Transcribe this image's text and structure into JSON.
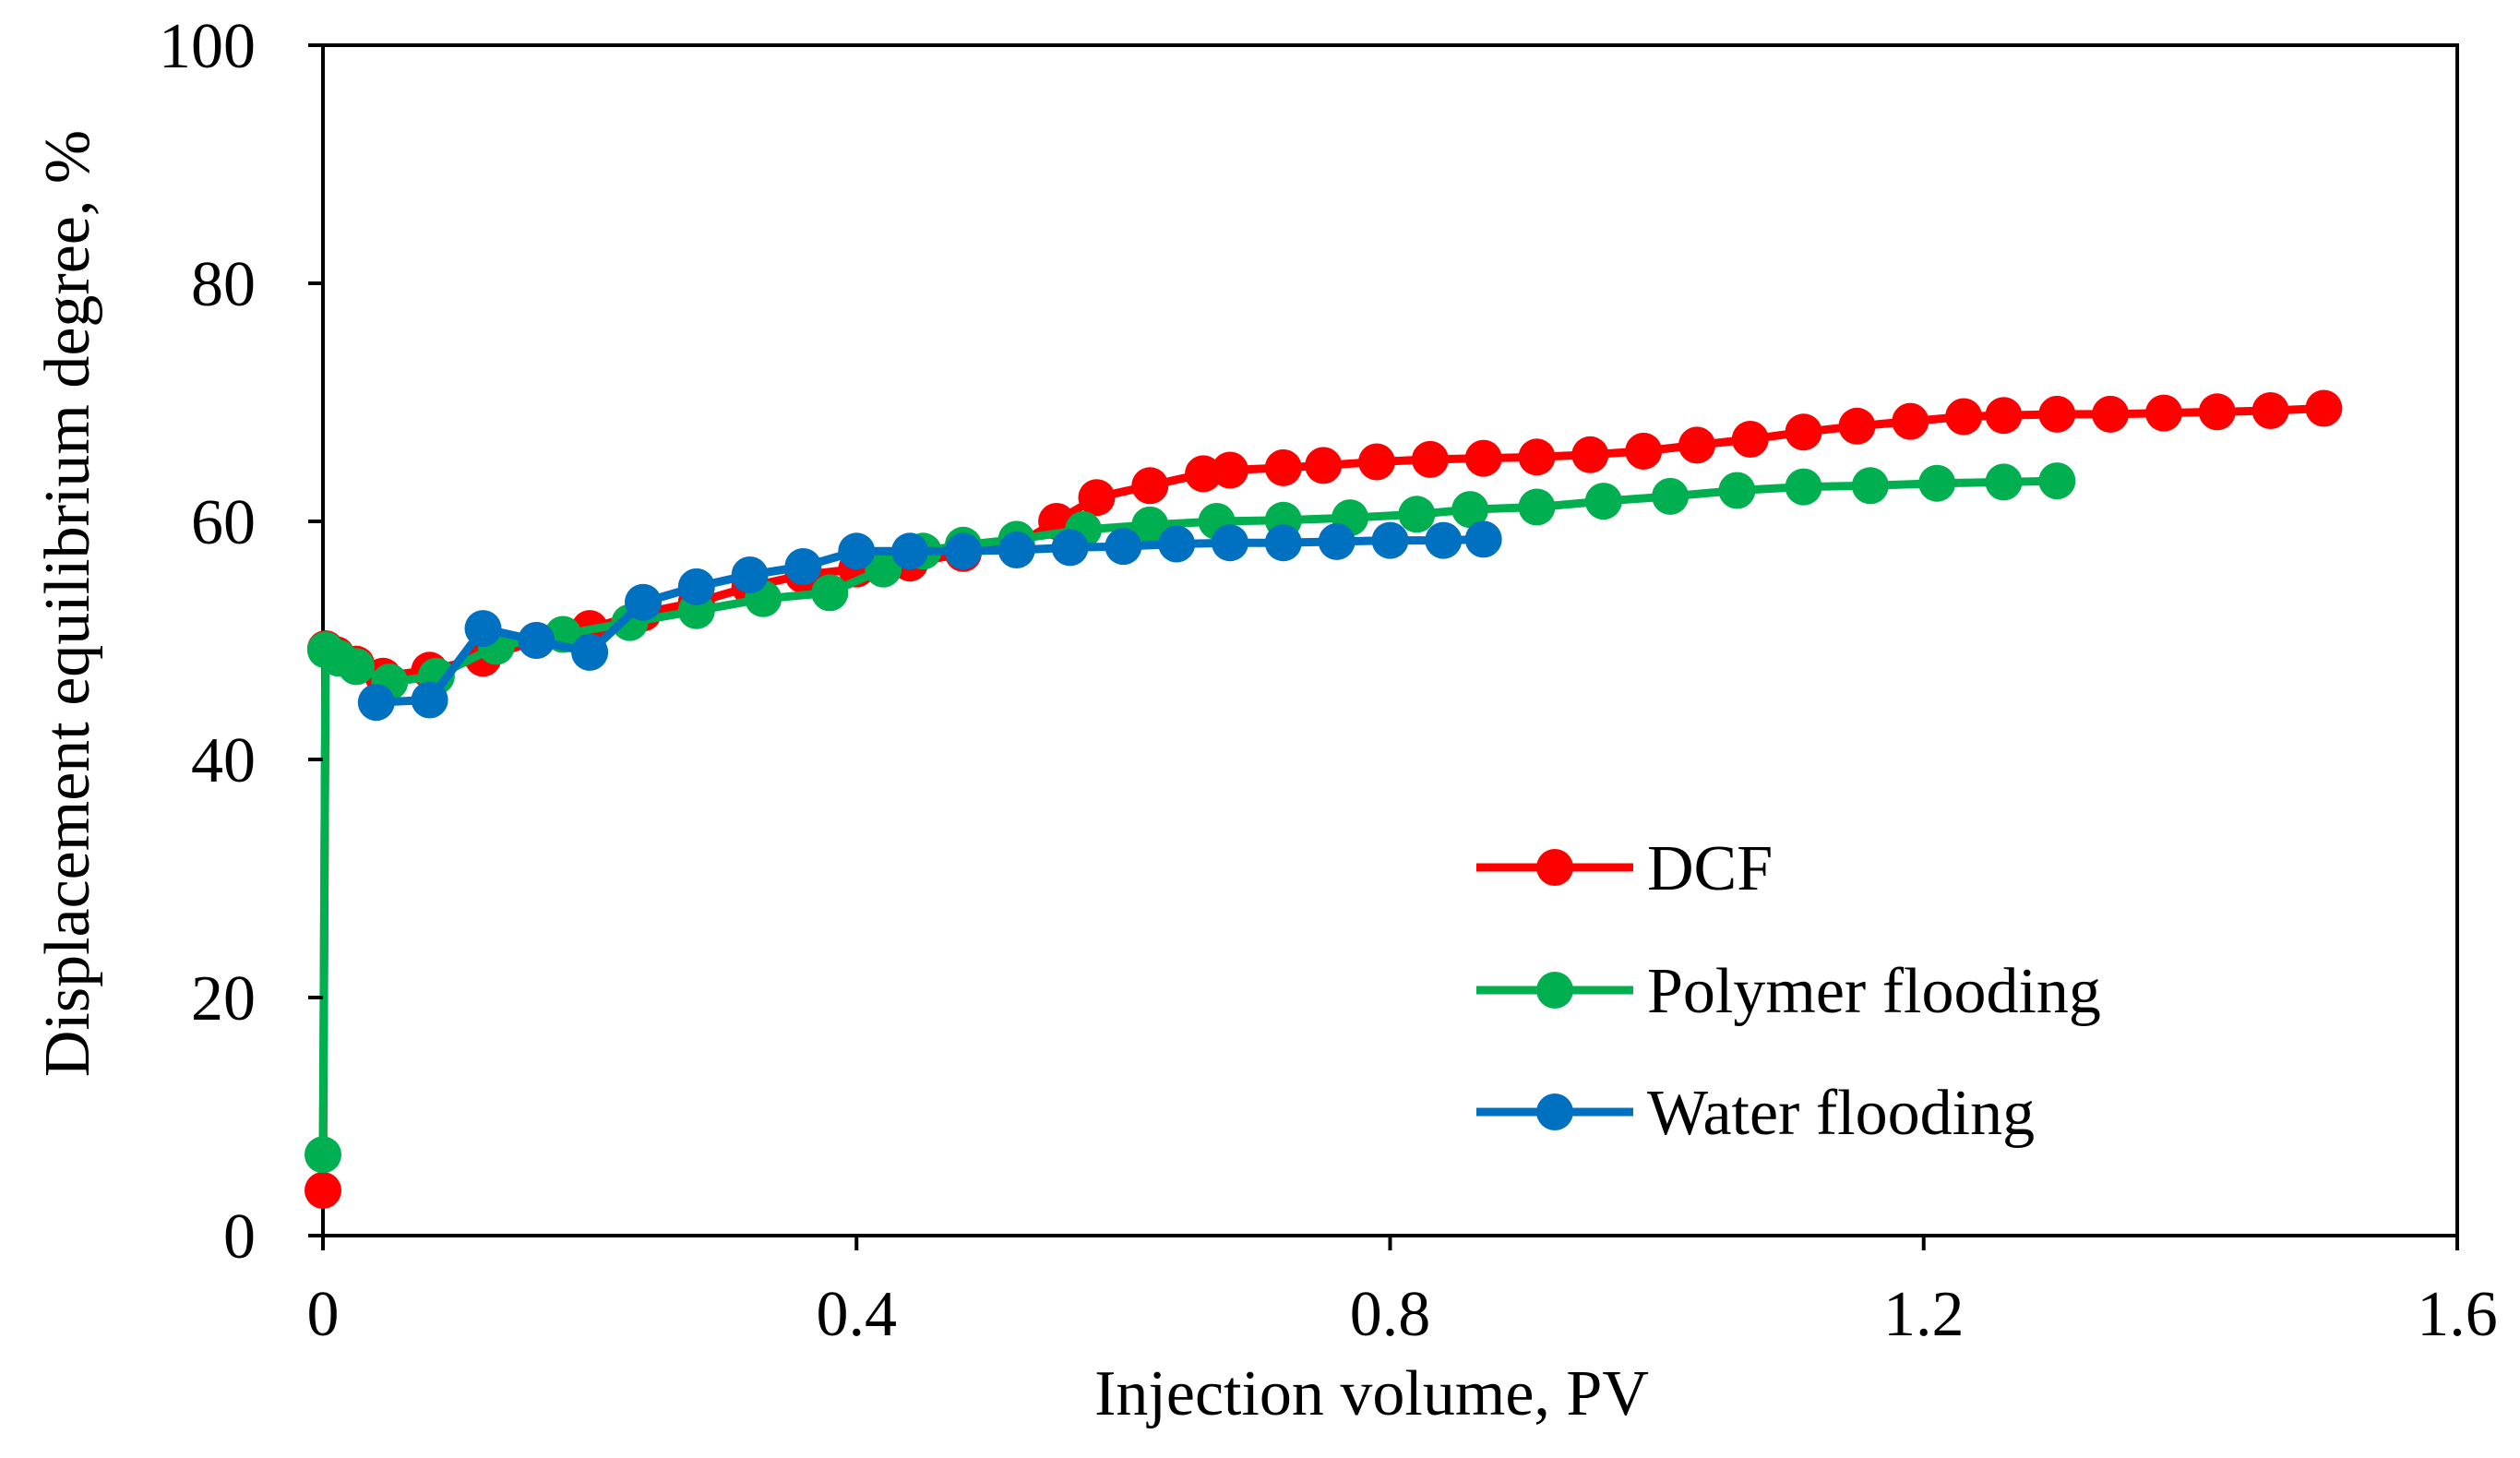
{
  "chart_data": {
    "type": "line",
    "title": "",
    "xlabel": "Injection volume, PV",
    "ylabel": "Displacement equilibrium degree, %",
    "xlim": [
      0,
      1.6
    ],
    "ylim": [
      0,
      100
    ],
    "xticks": [
      0,
      0.4,
      0.8,
      1.2,
      1.6
    ],
    "xtick_labels": [
      "0",
      "0.4",
      "0.8",
      "1.2",
      "1.6"
    ],
    "yticks": [
      0,
      20,
      40,
      60,
      80,
      100
    ],
    "ytick_labels": [
      "0",
      "20",
      "40",
      "60",
      "80",
      "100"
    ],
    "grid": false,
    "legend_position": "bottom-right",
    "series": [
      {
        "name": "DCF",
        "color": "#ff0000",
        "x": [
          0,
          0.002,
          0.01,
          0.025,
          0.045,
          0.08,
          0.12,
          0.16,
          0.2,
          0.24,
          0.28,
          0.32,
          0.36,
          0.4,
          0.44,
          0.48,
          0.52,
          0.55,
          0.58,
          0.62,
          0.66,
          0.68,
          0.72,
          0.75,
          0.79,
          0.83,
          0.87,
          0.91,
          0.95,
          0.99,
          1.03,
          1.07,
          1.11,
          1.15,
          1.19,
          1.23,
          1.26,
          1.3,
          1.34,
          1.38,
          1.42,
          1.46,
          1.5
        ],
        "y": [
          3.8,
          49.3,
          48.8,
          48,
          47,
          47.5,
          48.5,
          50,
          51,
          52.3,
          53.2,
          54.5,
          55.5,
          56,
          56.5,
          57.3,
          58,
          60,
          62,
          63,
          64,
          64.3,
          64.5,
          64.7,
          65,
          65.2,
          65.3,
          65.4,
          65.6,
          65.9,
          66.4,
          66.9,
          67.5,
          68,
          68.4,
          68.8,
          68.9,
          69,
          69,
          69.1,
          69.2,
          69.3,
          69.5
        ]
      },
      {
        "name": "Polymer flooding",
        "color": "#00b050",
        "x": [
          0,
          0.002,
          0.012,
          0.025,
          0.05,
          0.085,
          0.13,
          0.18,
          0.23,
          0.28,
          0.33,
          0.38,
          0.42,
          0.45,
          0.48,
          0.52,
          0.57,
          0.62,
          0.67,
          0.72,
          0.77,
          0.82,
          0.86,
          0.91,
          0.96,
          1.01,
          1.06,
          1.11,
          1.16,
          1.21,
          1.26,
          1.3
        ],
        "y": [
          6.8,
          49.2,
          48.5,
          47.8,
          46.5,
          47,
          49.5,
          50.5,
          51.5,
          52.5,
          53.5,
          54,
          56,
          57.5,
          58,
          58.5,
          59.3,
          59.7,
          60,
          60.1,
          60.3,
          60.6,
          61,
          61.2,
          61.7,
          62.1,
          62.6,
          62.9,
          63,
          63.2,
          63.3,
          63.4
        ]
      },
      {
        "name": "Water flooding",
        "color": "#0070c0",
        "x": [
          0.04,
          0.08,
          0.12,
          0.16,
          0.2,
          0.24,
          0.28,
          0.32,
          0.36,
          0.4,
          0.44,
          0.48,
          0.52,
          0.56,
          0.6,
          0.64,
          0.68,
          0.72,
          0.76,
          0.8,
          0.84,
          0.87
        ],
        "y": [
          44.8,
          45,
          51,
          50,
          49,
          53.2,
          54.5,
          55.5,
          56.2,
          57.5,
          57.5,
          57.5,
          57.6,
          57.8,
          57.9,
          58.1,
          58.2,
          58.2,
          58.3,
          58.4,
          58.4,
          58.5
        ]
      }
    ]
  }
}
